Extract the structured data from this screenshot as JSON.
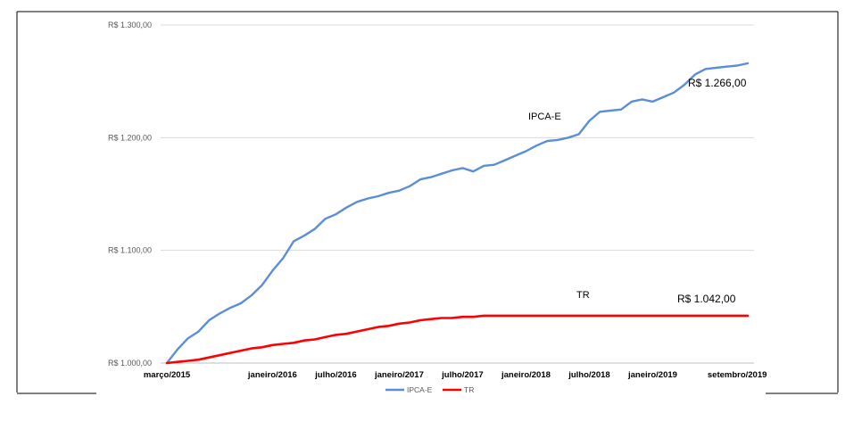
{
  "chart_data": {
    "type": "line",
    "title": "",
    "xlabel": "",
    "ylabel": "",
    "ylim": [
      1000,
      1300
    ],
    "y_ticks": [
      "R$ 1.000,00",
      "R$ 1.100,00",
      "R$ 1.200,00",
      "R$ 1.300,00"
    ],
    "y_tick_values": [
      1000,
      1100,
      1200,
      1300
    ],
    "x_tick_labels": [
      "março/2015",
      "janeiro/2016",
      "julho/2016",
      "janeiro/2017",
      "julho/2017",
      "janeiro/2018",
      "julho/2018",
      "janeiro/2019",
      "setembro/2019"
    ],
    "x_tick_month_index": [
      0,
      10,
      16,
      22,
      28,
      34,
      40,
      46,
      54
    ],
    "grid": true,
    "legend": "bottom",
    "series": [
      {
        "name": "IPCA-E",
        "color": "#5b8ed6",
        "values": [
          1000,
          1012,
          1022,
          1028,
          1038,
          1044,
          1049,
          1053,
          1060,
          1069,
          1082,
          1093,
          1108,
          1113,
          1119,
          1128,
          1132,
          1138,
          1143,
          1146,
          1148,
          1151,
          1153,
          1157,
          1163,
          1165,
          1168,
          1171,
          1173,
          1170,
          1175,
          1176,
          1180,
          1184,
          1188,
          1193,
          1197,
          1198,
          1200,
          1203,
          1215,
          1223,
          1224,
          1225,
          1232,
          1234,
          1232,
          1236,
          1240,
          1247,
          1256,
          1261,
          1262,
          1263,
          1264,
          1266
        ]
      },
      {
        "name": "TR",
        "color": "#ff0000",
        "values": [
          1000,
          1001,
          1002,
          1003,
          1005,
          1007,
          1009,
          1011,
          1013,
          1014,
          1016,
          1017,
          1018,
          1020,
          1021,
          1023,
          1025,
          1026,
          1028,
          1030,
          1032,
          1033,
          1035,
          1036,
          1038,
          1039,
          1040,
          1040,
          1041,
          1041,
          1042,
          1042,
          1042,
          1042,
          1042,
          1042,
          1042,
          1042,
          1042,
          1042,
          1042,
          1042,
          1042,
          1042,
          1042,
          1042,
          1042,
          1042,
          1042,
          1042,
          1042,
          1042,
          1042,
          1042,
          1042,
          1042
        ]
      }
    ],
    "annotations": [
      {
        "text": "IPCA-E",
        "series": "IPCA-E"
      },
      {
        "text": "R$ 1.266,00",
        "series": "IPCA-E"
      },
      {
        "text": "TR",
        "series": "TR"
      },
      {
        "text": "R$ 1.042,00",
        "series": "TR"
      }
    ]
  }
}
